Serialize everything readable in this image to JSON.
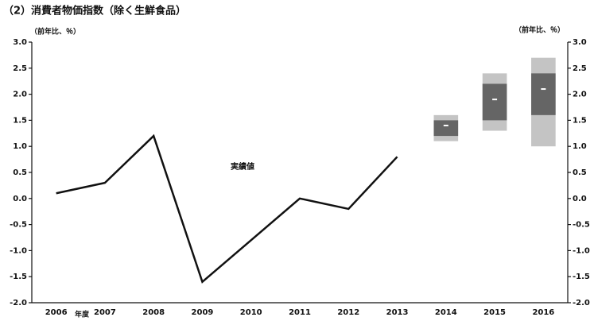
{
  "chart_data": {
    "type": "line",
    "title": "（2）消費者物価指数（除く生鮮食品）",
    "y_label": "（前年比、％）",
    "y2_label": "（前年比、％）",
    "x_label": "年度",
    "annotation": "実績値",
    "categories": [
      "2006",
      "2007",
      "2008",
      "2009",
      "2010",
      "2011",
      "2012",
      "2013",
      "2014",
      "2015",
      "2016"
    ],
    "series": [
      {
        "name": "実績値",
        "color": "#111111",
        "values": [
          0.1,
          0.3,
          1.2,
          -1.6,
          -0.8,
          0.0,
          -0.2,
          0.8,
          null,
          null,
          null
        ]
      }
    ],
    "forecast": {
      "color": "#555555",
      "low": [
        null,
        null,
        null,
        null,
        null,
        null,
        null,
        null,
        1.1,
        1.3,
        1.0
      ],
      "high": [
        null,
        null,
        null,
        null,
        null,
        null,
        null,
        null,
        1.6,
        2.4,
        2.7
      ],
      "core_low": [
        null,
        null,
        null,
        null,
        null,
        null,
        null,
        null,
        1.2,
        1.5,
        1.6
      ],
      "core_high": [
        null,
        null,
        null,
        null,
        null,
        null,
        null,
        null,
        1.5,
        2.2,
        2.4
      ],
      "median": [
        null,
        null,
        null,
        null,
        null,
        null,
        null,
        null,
        1.4,
        1.9,
        2.1
      ]
    },
    "ylim": [
      -2.0,
      3.0
    ],
    "yticks": [
      {
        "value": -2,
        "label": "-2.0"
      },
      {
        "value": -1.5,
        "label": "-1.5"
      },
      {
        "value": -1,
        "label": "-1.0"
      },
      {
        "value": -0.5,
        "label": "-0.5"
      },
      {
        "value": 0,
        "label": "0.0"
      },
      0.5,
      {
        "value": 1,
        "label": "1.0"
      },
      1.5,
      {
        "value": 2,
        "label": "2.0"
      },
      2.5,
      {
        "value": 3,
        "label": "3.0"
      }
    ],
    "y2lim": [
      -2.0,
      3.0
    ],
    "y2ticks": [
      {
        "value": -2,
        "label": "-2.0"
      },
      {
        "value": -1.5,
        "label": "-1.5"
      },
      {
        "value": -1,
        "label": "-1.0"
      },
      {
        "value": -0.5,
        "label": "-0.5"
      },
      {
        "value": 0,
        "label": "0.0"
      },
      0.5,
      {
        "value": 1,
        "label": "1.0"
      },
      1.5,
      {
        "value": 2,
        "label": "2.0"
      },
      2.5,
      {
        "value": 3,
        "label": "3.0"
      }
    ]
  }
}
